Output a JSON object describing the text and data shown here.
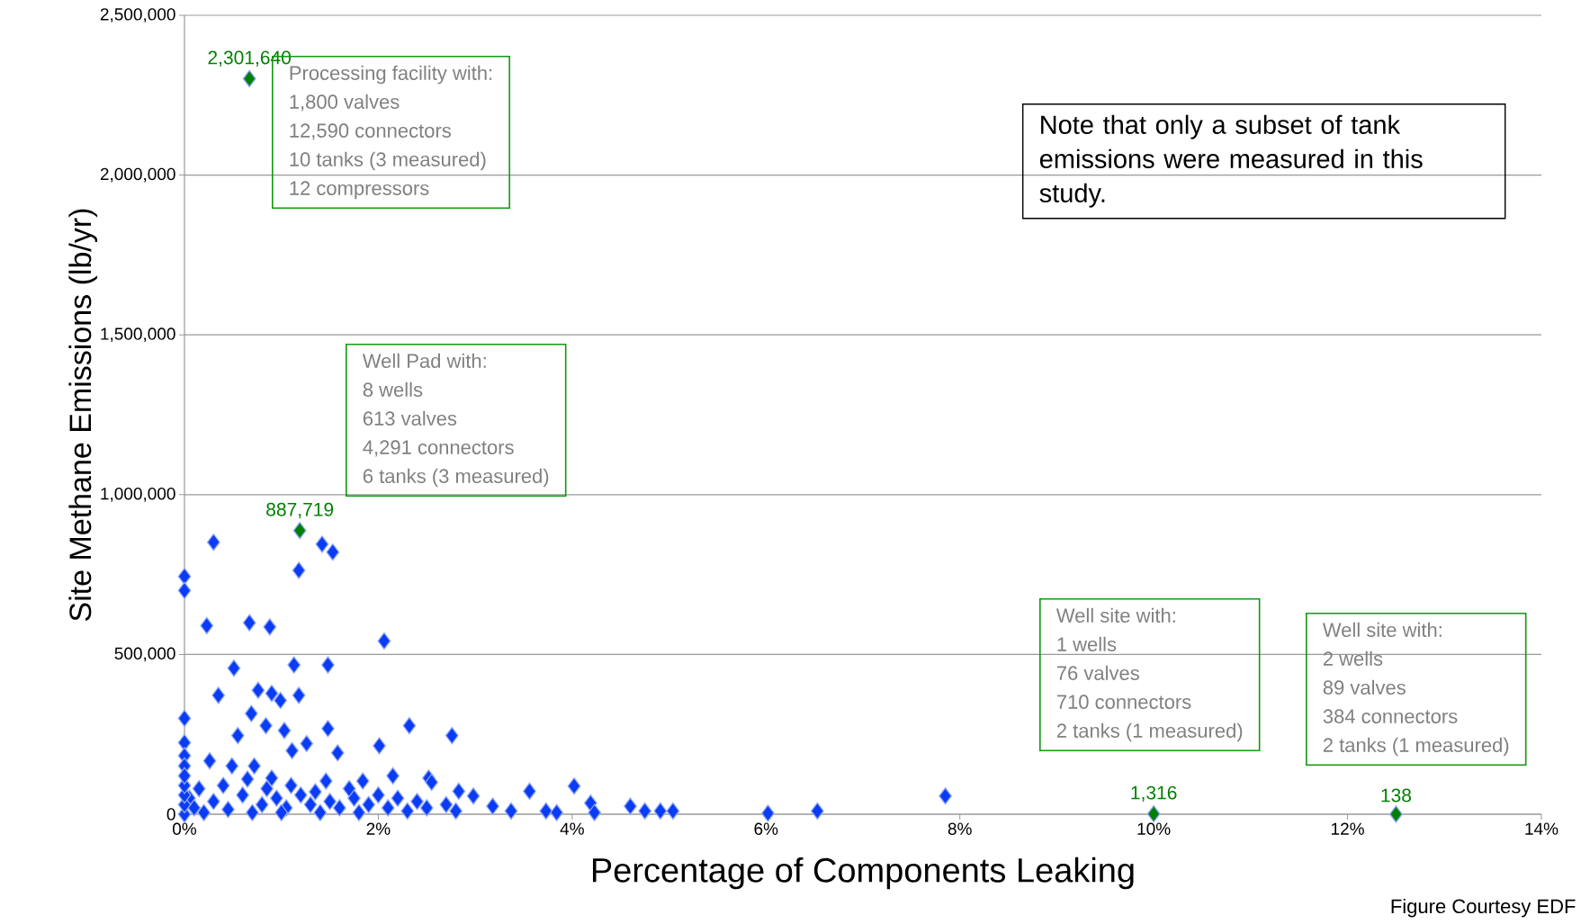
{
  "chart_data": {
    "type": "scatter",
    "xlabel": "Percentage of Components Leaking",
    "ylabel": "Site Methane Emissions (lb/yr)",
    "xlim": [
      0,
      14
    ],
    "ylim": [
      0,
      2500000
    ],
    "xticks": [
      {
        "value": 0,
        "label": "0%"
      },
      {
        "value": 2,
        "label": "2%"
      },
      {
        "value": 4,
        "label": "4%"
      },
      {
        "value": 6,
        "label": "6%"
      },
      {
        "value": 8,
        "label": "8%"
      },
      {
        "value": 10,
        "label": "10%"
      },
      {
        "value": 12,
        "label": "12%"
      },
      {
        "value": 14,
        "label": "14%"
      }
    ],
    "yticks": [
      0,
      {
        "value": 500000,
        "label": "500,000"
      },
      {
        "value": 1000000,
        "label": "1,000,000"
      },
      {
        "value": 1500000,
        "label": "1,500,000"
      },
      {
        "value": 2000000,
        "label": "2,000,000"
      },
      {
        "value": 2500000,
        "label": "2,500,000"
      }
    ],
    "grid": "y",
    "marker": "diamond",
    "series": [
      {
        "color": "#0a3cf5",
        "x": [
          0,
          0,
          0.3,
          1.18,
          1.42,
          1.53,
          0.23,
          0.67,
          0.88,
          2.06,
          0.51,
          1.13,
          1.48,
          0.35,
          0.76,
          0.9,
          0.99,
          1.18,
          0.69,
          0,
          0.84,
          1.03,
          1.48,
          2.32,
          2.76,
          0,
          0.55,
          1.26,
          2.01,
          1.58,
          0,
          0.26,
          1.11,
          0.72,
          0.9,
          0,
          0.49,
          1.46,
          1.84,
          2.15,
          2.52,
          2.83,
          2.98,
          3.18,
          3.56,
          3.37,
          3.73,
          3.84,
          4.02,
          4.19,
          4.23,
          4.6,
          4.75,
          4.91,
          5.04,
          6.02,
          6.53,
          7.85,
          0.05,
          0.1,
          0.15,
          0.3,
          0.4,
          0.45,
          0.6,
          0.65,
          0.8,
          0.85,
          0.95,
          1.05,
          1.1,
          1.2,
          1.3,
          1.35,
          1.5,
          1.6,
          1.7,
          1.75,
          1.9,
          2.0,
          2.1,
          2.2,
          2.3,
          2.4,
          2.5,
          2.55,
          2.7,
          2.8,
          0,
          0,
          0,
          0,
          0,
          0.2,
          0.7,
          1.0,
          1.4,
          1.8
        ],
        "values": [
          744000,
          700000,
          851000,
          763000,
          845000,
          820000,
          590000,
          599000,
          586000,
          542000,
          457000,
          467000,
          467000,
          372000,
          388000,
          378000,
          356000,
          372000,
          315000,
          300000,
          277000,
          262000,
          268000,
          277000,
          246000,
          224000,
          246000,
          221000,
          214000,
          192000,
          183000,
          167000,
          199000,
          151000,
          113000,
          151000,
          151000,
          104000,
          104000,
          120000,
          113000,
          72000,
          57000,
          25000,
          72000,
          10000,
          10000,
          5000,
          88000,
          35000,
          5000,
          25000,
          10000,
          10000,
          10000,
          3000,
          10000,
          57000,
          50000,
          20000,
          80000,
          40000,
          90000,
          15000,
          60000,
          110000,
          30000,
          80000,
          50000,
          20000,
          90000,
          60000,
          30000,
          70000,
          40000,
          20000,
          80000,
          50000,
          30000,
          60000,
          20000,
          50000,
          10000,
          40000,
          20000,
          100000,
          30000,
          10000,
          0,
          30000,
          60000,
          90000,
          120000,
          5000,
          5000,
          5000,
          5000,
          5000
        ]
      },
      {
        "color": "#008000",
        "x": [
          0.67,
          1.19,
          10,
          12.5
        ],
        "values": [
          2301640,
          887719,
          1316,
          138
        ],
        "value_labels": [
          "2,301,640",
          "887,719",
          "1,316",
          "138"
        ]
      }
    ],
    "annotations": [
      "Processing facility with:",
      "1,800 valves",
      "12,590 connectors",
      "10 tanks (3 measured)",
      "12 compressors",
      "Well Pad with:",
      "8 wells",
      "613 valves",
      "4,291 connectors",
      "6 tanks (3 measured)",
      "Well site with:",
      "1 wells",
      "76 valves",
      "710 connectors",
      "2 tanks (1 measured)",
      "Well site with:",
      "2 wells",
      "89 valves",
      "384 connectors",
      "2 tanks (1 measured)",
      "Note that only a subset of tank emissions were measured in this study.",
      "Figure Courtesy EDF"
    ]
  }
}
